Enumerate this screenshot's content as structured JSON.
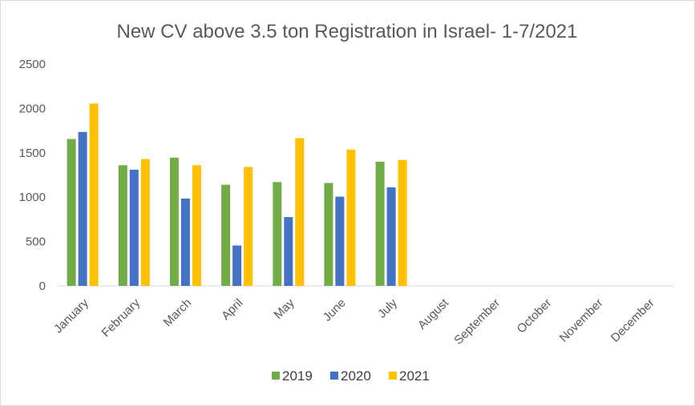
{
  "chart_data": {
    "type": "bar",
    "title": "New CV above 3.5 ton Registration in Israel- 1-7/2021",
    "xlabel": "",
    "ylabel": "",
    "ylim": [
      0,
      2500
    ],
    "yticks": [
      0,
      500,
      1000,
      1500,
      2000,
      2500
    ],
    "grid": false,
    "legend": "bottom",
    "categories": [
      "January",
      "February",
      "March",
      "April",
      "May",
      "June",
      "July",
      "August",
      "September",
      "October",
      "November",
      "December"
    ],
    "series": [
      {
        "name": "2019",
        "color": "#70ad47",
        "values": [
          1655,
          1360,
          1445,
          1140,
          1170,
          1160,
          1400,
          null,
          null,
          null,
          null,
          null
        ]
      },
      {
        "name": "2020",
        "color": "#4472c4",
        "values": [
          1735,
          1310,
          985,
          455,
          775,
          1005,
          1110,
          null,
          null,
          null,
          null,
          null
        ]
      },
      {
        "name": "2021",
        "color": "#ffc000",
        "values": [
          2055,
          1430,
          1360,
          1340,
          1665,
          1535,
          1420,
          null,
          null,
          null,
          null,
          null
        ]
      }
    ]
  }
}
